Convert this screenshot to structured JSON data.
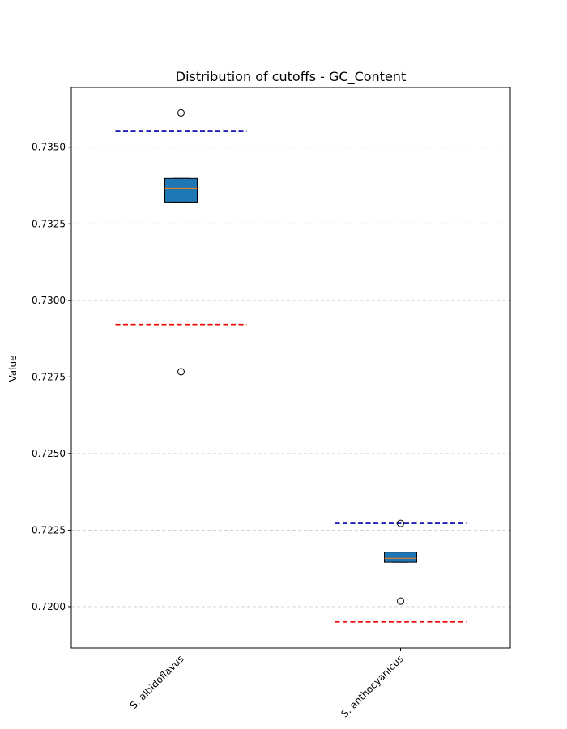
{
  "chart_data": {
    "type": "box",
    "title": "Distribution of cutoffs - GC_Content",
    "xlabel": "",
    "ylabel": "Value",
    "ylim": [
      0.71865,
      0.73695
    ],
    "yticks": [
      0.72,
      0.7225,
      0.725,
      0.7275,
      0.73,
      0.7325,
      0.735
    ],
    "ytick_labels": [
      "0.7200",
      "0.7225",
      "0.7250",
      "0.7275",
      "0.7300",
      "0.7325",
      "0.7350"
    ],
    "grid": {
      "y": true,
      "x": false,
      "style": "dashed"
    },
    "categories": [
      "S. albidoflavus",
      "S. anthocyanicus"
    ],
    "boxes": [
      {
        "category": "S. albidoflavus",
        "q1": 0.73321,
        "median": 0.73366,
        "q3": 0.73398,
        "whisker_low": 0.73321,
        "whisker_high": 0.73398,
        "outliers": [
          0.73612,
          0.72767
        ],
        "upper_cutoff": 0.73552,
        "lower_cutoff": 0.72921
      },
      {
        "category": "S. anthocyanicus",
        "q1": 0.72145,
        "median": 0.72158,
        "q3": 0.72178,
        "whisker_low": 0.72145,
        "whisker_high": 0.72178,
        "outliers": [
          0.72272,
          0.72018
        ],
        "upper_cutoff": 0.72272,
        "lower_cutoff": 0.7195
      }
    ],
    "colors": {
      "box_fill": "#1f77b4",
      "median": "#ff7f0e",
      "upper_cutoff": "#0000aa",
      "lower_cutoff": "#ee0000",
      "grid": "#cccccc"
    }
  }
}
